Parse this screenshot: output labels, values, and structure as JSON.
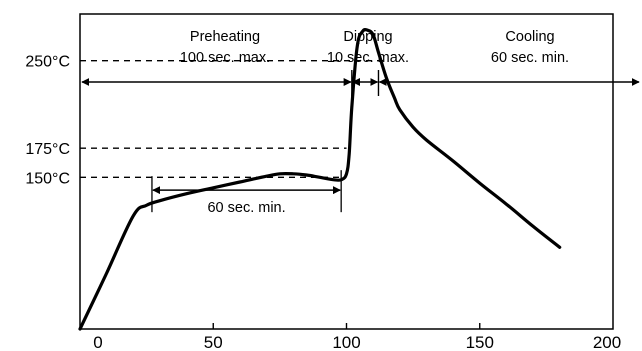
{
  "chart_data": {
    "type": "line",
    "title": "",
    "xlabel": "",
    "ylabel": "",
    "xlim": [
      0,
      200
    ],
    "ylim": [
      20,
      290
    ],
    "x_ticks": [
      0,
      50,
      100,
      150,
      200
    ],
    "x_tick_labels": [
      "0",
      "50",
      "100",
      "150",
      "200"
    ],
    "y_tick_values": [
      250,
      175,
      150
    ],
    "y_tick_labels": [
      "250°C",
      "175°C",
      "150°C"
    ],
    "grid": false,
    "legend": "none",
    "series": [
      {
        "x": [
          0,
          10,
          20,
          25,
          30,
          40,
          50,
          60,
          70,
          75,
          80,
          85,
          90,
          95,
          98,
          100,
          101,
          102,
          104,
          106,
          108,
          110,
          112,
          115,
          118,
          120,
          125,
          130,
          140,
          150,
          160,
          170,
          180
        ],
        "y": [
          20,
          68,
          117,
          126,
          130,
          136,
          141,
          146,
          151,
          153,
          153,
          152,
          150,
          148,
          148,
          153,
          170,
          210,
          262,
          275,
          276,
          272,
          257,
          235,
          218,
          208,
          193,
          182,
          164,
          145,
          127,
          108,
          90
        ]
      }
    ],
    "reference_lines": [
      {
        "y": 250,
        "x_end": 115
      },
      {
        "y": 175,
        "x_end": 100
      },
      {
        "y": 150,
        "x_end": 100
      }
    ],
    "phases": [
      {
        "name": "Preheating",
        "note": "100 sec. max.",
        "x_start": 0,
        "x_end": 102
      },
      {
        "name": "Dipping",
        "note": "10 sec. max.",
        "x_start": 102,
        "x_end": 112
      },
      {
        "name": "Cooling",
        "note": "60 sec. min.",
        "x_start": 112,
        "x_end": 200
      }
    ],
    "annotations": [
      {
        "text": "60 sec. min.",
        "x_start": 27,
        "x_end": 98,
        "y": 139
      }
    ]
  }
}
